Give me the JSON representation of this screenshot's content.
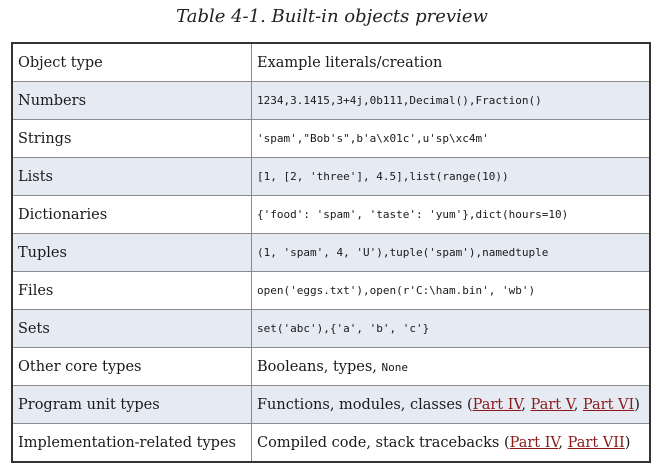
{
  "caption": "Table 4-1. Built-in objects preview",
  "header": {
    "col1": "Object type",
    "col2": "Example literals/creation"
  },
  "rows": [
    {
      "type": "Numbers",
      "example": "1234,3.1415,3+4j,0b111,Decimal(),Fraction()"
    },
    {
      "type": "Strings",
      "example": "'spam',\"Bob's\",b'a\\x01c',u'sp\\xc4m'"
    },
    {
      "type": "Lists",
      "example": "[1, [2, 'three'], 4.5],list(range(10))"
    },
    {
      "type": "Dictionaries",
      "example": "{'food': 'spam', 'taste': 'yum'},dict(hours=10)"
    },
    {
      "type": "Tuples",
      "example": "(1, 'spam', 4, 'U'),tuple('spam'),namedtuple"
    },
    {
      "type": "Files",
      "example": "open('eggs.txt'),open(r'C:\\ham.bin', 'wb')"
    },
    {
      "type": "Sets",
      "example": "set('abc'),{'a', 'b', 'c'}"
    }
  ],
  "other_core": {
    "type": "Other core types",
    "text": "Booleans, types, ",
    "code": "None"
  },
  "program_unit": {
    "type": "Program unit types",
    "text": "Functions, modules, classes (",
    "links": [
      "Part IV",
      "Part V",
      "Part VI"
    ],
    "close": ")"
  },
  "impl": {
    "type": "Implementation-related types",
    "text": "Compiled code, stack tracebacks (",
    "links": [
      "Part IV",
      "Part VII"
    ],
    "close": ")"
  },
  "colors": {
    "alt_row": "#e6ebf3",
    "link": "#8b1a1a"
  }
}
